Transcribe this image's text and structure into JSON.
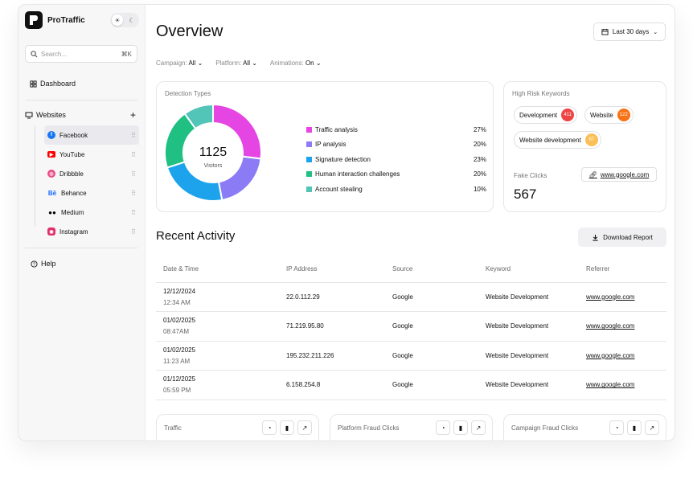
{
  "app": {
    "name": "ProTraffic"
  },
  "sidebar": {
    "search_placeholder": "Search...",
    "search_shortcut": "⌘K",
    "dashboard_label": "Dashboard",
    "websites_label": "Websites",
    "websites": [
      {
        "label": "Facebook",
        "icon": "facebook-icon",
        "color": "#1877f2",
        "active": true
      },
      {
        "label": "YouTube",
        "icon": "youtube-icon",
        "color": "#ff0000"
      },
      {
        "label": "Dribbble",
        "icon": "dribbble-icon",
        "color": "#ea4c89"
      },
      {
        "label": "Behance",
        "icon": "behance-icon",
        "color": "#1769ff"
      },
      {
        "label": "Medium",
        "icon": "medium-icon",
        "color": "#000000"
      },
      {
        "label": "Instagram",
        "icon": "instagram-icon",
        "color": "#e1306c"
      }
    ],
    "help_label": "Help"
  },
  "header": {
    "title": "Overview",
    "date_range": "Last 30 days"
  },
  "filters": [
    {
      "label": "Campaign:",
      "value": "All"
    },
    {
      "label": "Platform:",
      "value": "All"
    },
    {
      "label": "Animations:",
      "value": "On"
    }
  ],
  "detection": {
    "title": "Detection Types",
    "total": "1125",
    "total_label": "Visitors"
  },
  "chart_data": {
    "type": "pie",
    "title": "Detection Types",
    "categories": [
      "Traffic analysis",
      "IP analysis",
      "Signature detection",
      "Human interaction challenges",
      "Account stealing"
    ],
    "values": [
      27,
      20,
      23,
      20,
      10
    ],
    "labels": [
      "27%",
      "20%",
      "23%",
      "20%",
      "10%"
    ],
    "colors": [
      "#e546e3",
      "#8b7cf6",
      "#1ca3ec",
      "#20c083",
      "#52c4b8"
    ],
    "center_text": "1125",
    "center_subtext": "Visitors"
  },
  "keywords": {
    "title": "High Risk Keywords",
    "items": [
      {
        "label": "Development",
        "count": "411",
        "color": "#ef4444"
      },
      {
        "label": "Website",
        "count": "122",
        "color": "#f97316"
      },
      {
        "label": "Website development",
        "count": "67",
        "color": "#fbbf57"
      }
    ],
    "fake_clicks_label": "Fake Clicks",
    "fake_clicks_value": "567",
    "link": "www.google.com"
  },
  "activity": {
    "title": "Recent Activity",
    "download_label": "Download Report",
    "columns": [
      "Date & Time",
      "IP Address",
      "Source",
      "Keyword",
      "Referrer"
    ],
    "rows": [
      {
        "date": "12/12/2024",
        "time": "12:34 AM",
        "ip": "22.0.112.29",
        "source": "Google",
        "keyword": "Website Development",
        "referrer": "www.google.com"
      },
      {
        "date": "01/02/2025",
        "time": "08:47AM",
        "ip": "71.219.95.80",
        "source": "Google",
        "keyword": "Website Development",
        "referrer": "www.google.com"
      },
      {
        "date": "01/02/2025",
        "time": "11:23 AM",
        "ip": "195.232.211.226",
        "source": "Google",
        "keyword": "Website Development",
        "referrer": "www.google.com"
      },
      {
        "date": "01/12/2025",
        "time": "05:59 PM",
        "ip": "6.158.254.8",
        "source": "Google",
        "keyword": "Website Development",
        "referrer": "www.google.com"
      }
    ]
  },
  "mini_cards": [
    {
      "title": "Traffic"
    },
    {
      "title": "Platform Fraud Clicks"
    },
    {
      "title": "Campaign Fraud Clicks"
    }
  ]
}
